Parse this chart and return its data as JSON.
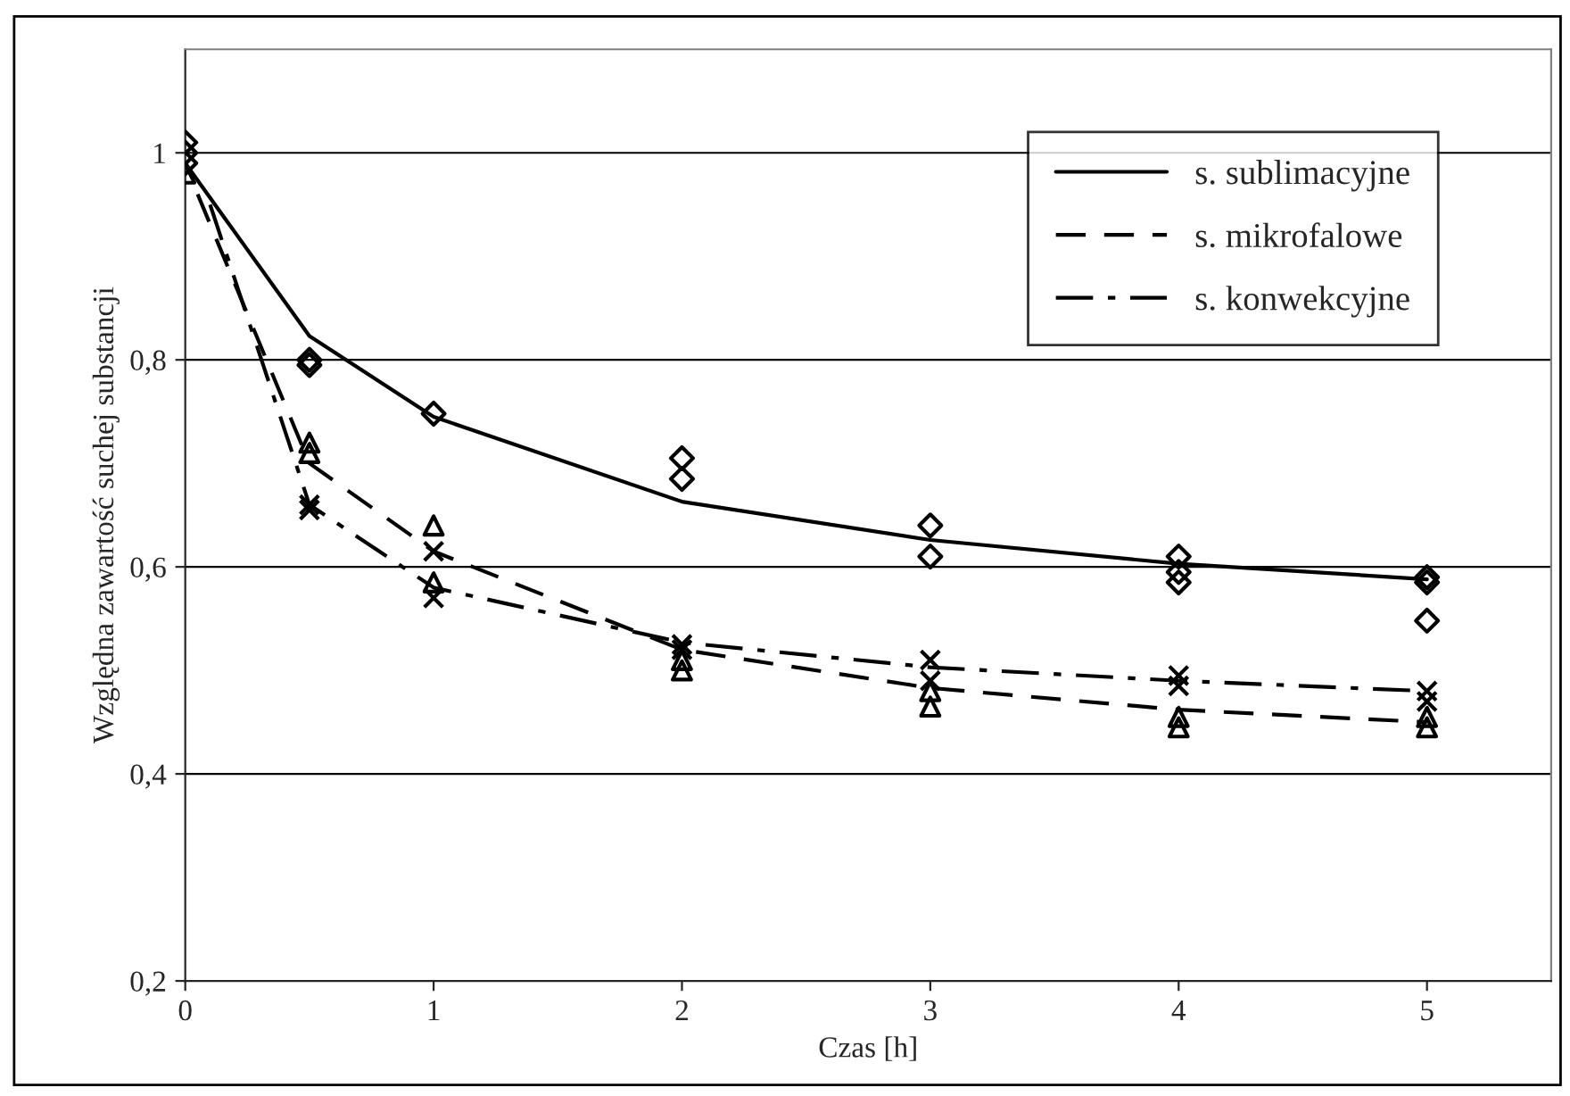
{
  "chart_data": {
    "type": "line",
    "xlabel": "Czas [h]",
    "ylabel": "Względna zawartość suchej substancji",
    "xlim": [
      0,
      5.5
    ],
    "ylim": [
      0.2,
      1.1
    ],
    "xticks": [
      0,
      1,
      2,
      3,
      4,
      5
    ],
    "yticks": [
      {
        "value": 0.2,
        "label": "0,2"
      },
      {
        "value": 0.4,
        "label": "0,4"
      },
      {
        "value": 0.6,
        "label": "0,6"
      },
      {
        "value": 0.8,
        "label": "0,8"
      },
      {
        "value": 1,
        "label": "1"
      }
    ],
    "grid": "y",
    "legend": "top right",
    "series": [
      {
        "name": "s. sublimacyjne",
        "line_style": "solid",
        "color": "#000000",
        "x": [
          0,
          0.5,
          1,
          2,
          3,
          4,
          5
        ],
        "values": [
          0.99,
          0.823,
          0.745,
          0.663,
          0.626,
          0.603,
          0.588
        ]
      },
      {
        "name": "s. mikrofalowe",
        "line_style": "dashed",
        "color": "#000000",
        "x": [
          0.05,
          0.5,
          1,
          2,
          3,
          4,
          5
        ],
        "values": [
          0.96,
          0.7,
          0.615,
          0.52,
          0.483,
          0.462,
          0.45
        ]
      },
      {
        "name": "s. konwekcyjne",
        "line_style": "dashdot",
        "color": "#000000",
        "x": [
          0.1,
          0.5,
          1,
          2,
          3,
          4,
          5
        ],
        "values": [
          0.95,
          0.66,
          0.58,
          0.527,
          0.503,
          0.49,
          0.48
        ]
      },
      {
        "type": "scatter",
        "marker": "diamond",
        "color": "#000000",
        "x": [
          0,
          0,
          0,
          0.5,
          0.5,
          1,
          2,
          2,
          3,
          3,
          4,
          4,
          4,
          5,
          5,
          5
        ],
        "values": [
          1.01,
          1.0,
          0.99,
          0.8,
          0.795,
          0.748,
          0.705,
          0.685,
          0.64,
          0.61,
          0.61,
          0.595,
          0.585,
          0.59,
          0.585,
          0.548
        ]
      },
      {
        "type": "scatter",
        "marker": "triangle",
        "color": "#000000",
        "x": [
          0,
          0.5,
          0.5,
          1,
          1,
          2,
          2,
          3,
          3,
          4,
          4,
          5,
          5
        ],
        "values": [
          0.98,
          0.72,
          0.71,
          0.64,
          0.585,
          0.51,
          0.5,
          0.48,
          0.465,
          0.455,
          0.445,
          0.455,
          0.445
        ]
      },
      {
        "type": "scatter",
        "marker": "cross",
        "color": "#000000",
        "x": [
          0.5,
          0.5,
          1,
          1,
          2,
          2,
          3,
          3,
          4,
          4,
          5,
          5
        ],
        "values": [
          0.66,
          0.655,
          0.615,
          0.57,
          0.525,
          0.52,
          0.51,
          0.49,
          0.495,
          0.485,
          0.48,
          0.47
        ]
      }
    ]
  }
}
